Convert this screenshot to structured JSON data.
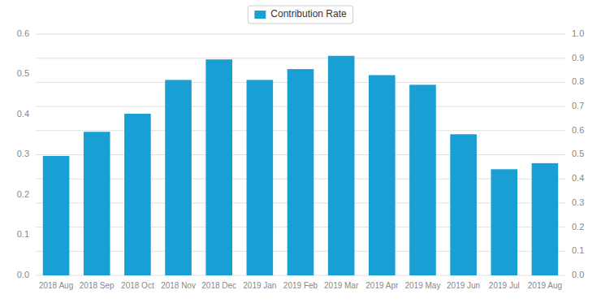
{
  "chart_data": {
    "type": "bar",
    "categories": [
      "2018 Aug",
      "2018 Sep",
      "2018 Oct",
      "2018 Nov",
      "2018 Dec",
      "2019 Jan",
      "2019 Feb",
      "2019 Mar",
      "2019 Apr",
      "2019 May",
      "2019 Jun",
      "2019 Jul",
      "2019 Aug"
    ],
    "series": [
      {
        "name": "Contribution Rate",
        "color": "#1a9fd4",
        "axis": "y2",
        "values": [
          0.495,
          0.595,
          0.67,
          0.81,
          0.895,
          0.81,
          0.855,
          0.91,
          0.83,
          0.79,
          0.585,
          0.44,
          0.465
        ]
      }
    ],
    "ylim": [
      0,
      0.6
    ],
    "yticks": [
      {
        "value": 0,
        "label": "0.0"
      },
      0.1,
      0.2,
      0.3,
      0.4,
      0.5,
      0.6
    ],
    "y2lim": [
      0,
      1.0
    ],
    "y2ticks": [
      {
        "value": 0,
        "label": "0.0"
      },
      0.1,
      0.2,
      0.3,
      0.4,
      0.5,
      0.6,
      0.7,
      0.8,
      0.9,
      {
        "value": 1.0,
        "label": "1.0"
      }
    ],
    "grid": true,
    "legend": "top"
  }
}
